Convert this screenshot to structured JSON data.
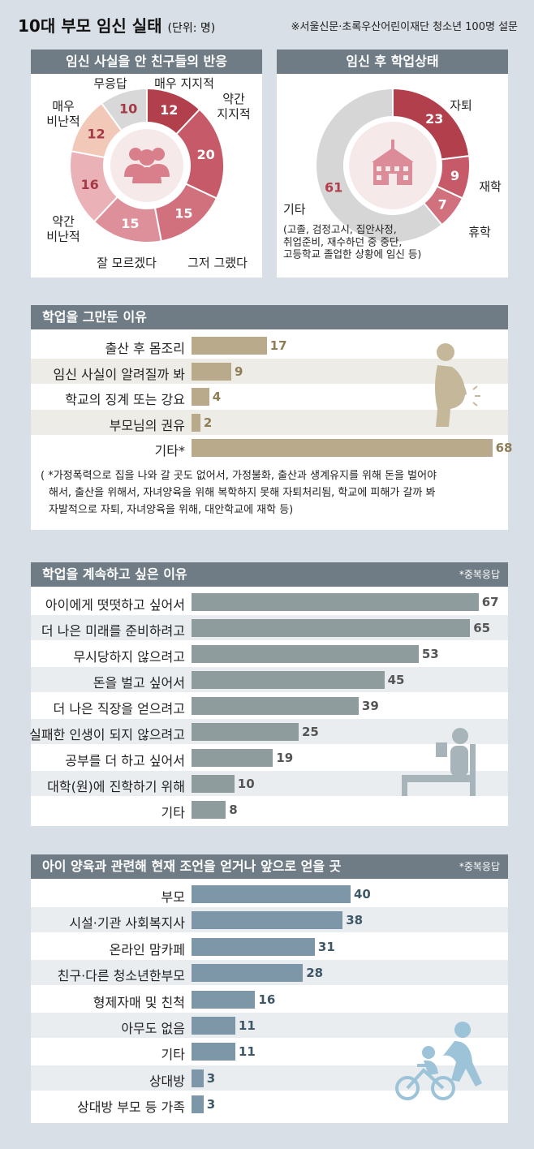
{
  "title": "10대 부모 임신 실태",
  "unit": "(단위: 명)",
  "source": "※서울신문·초록우산어린이재단 청소년 100명 설문",
  "chart_data": [
    {
      "type": "pie",
      "title": "임신 사실을 안 친구들의 반응",
      "categories": [
        "매우 지지적",
        "약간 지지적",
        "그저 그랬다",
        "잘 모르겠다",
        "약간 비난적",
        "매우 비난적",
        "무응답"
      ],
      "values": [
        12,
        20,
        15,
        15,
        16,
        12,
        10
      ],
      "label_lines": [
        [
          "매우 지지적"
        ],
        [
          "약간",
          "지지적"
        ],
        [
          "그저 그랬다"
        ],
        [
          "잘 모르겠다"
        ],
        [
          "약간",
          "비난적"
        ],
        [
          "매우",
          "비난적"
        ],
        [
          "무응답"
        ]
      ],
      "colors": [
        "#b13f4c",
        "#c65a68",
        "#d1717e",
        "#dd8f9a",
        "#eab1b7",
        "#f2c8b8",
        "#d8d8d8"
      ]
    },
    {
      "type": "pie",
      "title": "임신 후 학업상태",
      "categories": [
        "자퇴",
        "재학",
        "휴학",
        "기타"
      ],
      "values": [
        23,
        9,
        7,
        61
      ],
      "other_note": [
        "(고졸, 검정고시, 집안사정,",
        "취업준비, 재수하던 중 중단,",
        "고등학교 졸업한 상황에 임신 등)"
      ],
      "colors": [
        "#b13f4c",
        "#c65a68",
        "#d1717e",
        "#d6d6d6"
      ]
    },
    {
      "type": "bar",
      "title": "학업을 그만둔 이유",
      "categories": [
        "출산 후 몸조리",
        "임신 사실이 알려질까 봐",
        "학교의 징계 또는 강요",
        "부모님의 권유",
        "기타*"
      ],
      "values": [
        17,
        9,
        4,
        2,
        68
      ],
      "footnote": [
        "( *가정폭력으로 집을 나와 갈 곳도 없어서, 가정불화, 출산과 생계유지를 위해 돈을 벌어야",
        "해서, 출산을 위해서, 자녀양육을 위해 복학하지 못해 자퇴처리됨, 학교에 피해가 갈까 봐",
        "자발적으로 자퇴, 자녀양육을 위해, 대안학교에 재학 등)"
      ],
      "color": "#b8aa8a"
    },
    {
      "type": "bar",
      "title": "학업을 계속하고 싶은 이유",
      "note": "*중복응답",
      "categories": [
        "아이에게 떳떳하고 싶어서",
        "더 나은 미래를 준비하려고",
        "무시당하지 않으려고",
        "돈을 벌고 싶어서",
        "더 나은 직장을 얻으려고",
        "실패한 인생이 되지 않으려고",
        "공부를 더 하고 싶어서",
        "대학(원)에 진학하기 위해",
        "기타"
      ],
      "values": [
        67,
        65,
        53,
        45,
        39,
        25,
        19,
        10,
        8
      ],
      "color": "#8f9c9e"
    },
    {
      "type": "bar",
      "title": "아이 양육과 관련해 현재 조언을 얻거나 앞으로 얻을 곳",
      "note": "*중복응답",
      "categories": [
        "부모",
        "시설·기관 사회복지사",
        "온라인 맘카페",
        "친구·다른 청소년한부모",
        "형제자매 및 친척",
        "아무도 없음",
        "기타",
        "상대방",
        "상대방 부모 등 가족"
      ],
      "values": [
        40,
        38,
        31,
        28,
        16,
        11,
        11,
        3,
        3
      ],
      "color": "#7e97a8"
    }
  ]
}
